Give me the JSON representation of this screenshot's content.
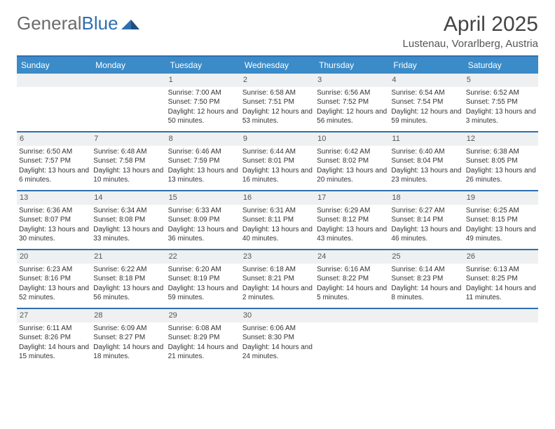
{
  "colors": {
    "header_rule": "#2f6fb0",
    "dow_bg": "#3b8bc8",
    "daynum_bg": "#eef0f1",
    "text": "#333333",
    "title": "#444444",
    "logo_gray": "#6b6b6b",
    "logo_blue": "#2f6fb0"
  },
  "logo": {
    "part1": "General",
    "part2": "Blue"
  },
  "title": "April 2025",
  "subtitle": "Lustenau, Vorarlberg, Austria",
  "dow": [
    "Sunday",
    "Monday",
    "Tuesday",
    "Wednesday",
    "Thursday",
    "Friday",
    "Saturday"
  ],
  "labels": {
    "sunrise": "Sunrise:",
    "sunset": "Sunset:",
    "daylight": "Daylight:"
  },
  "weeks": [
    [
      {
        "pad": true
      },
      {
        "pad": true
      },
      {
        "n": "1",
        "sunrise": "7:00 AM",
        "sunset": "7:50 PM",
        "day": "12 hours and 50 minutes."
      },
      {
        "n": "2",
        "sunrise": "6:58 AM",
        "sunset": "7:51 PM",
        "day": "12 hours and 53 minutes."
      },
      {
        "n": "3",
        "sunrise": "6:56 AM",
        "sunset": "7:52 PM",
        "day": "12 hours and 56 minutes."
      },
      {
        "n": "4",
        "sunrise": "6:54 AM",
        "sunset": "7:54 PM",
        "day": "12 hours and 59 minutes."
      },
      {
        "n": "5",
        "sunrise": "6:52 AM",
        "sunset": "7:55 PM",
        "day": "13 hours and 3 minutes."
      }
    ],
    [
      {
        "n": "6",
        "sunrise": "6:50 AM",
        "sunset": "7:57 PM",
        "day": "13 hours and 6 minutes."
      },
      {
        "n": "7",
        "sunrise": "6:48 AM",
        "sunset": "7:58 PM",
        "day": "13 hours and 10 minutes."
      },
      {
        "n": "8",
        "sunrise": "6:46 AM",
        "sunset": "7:59 PM",
        "day": "13 hours and 13 minutes."
      },
      {
        "n": "9",
        "sunrise": "6:44 AM",
        "sunset": "8:01 PM",
        "day": "13 hours and 16 minutes."
      },
      {
        "n": "10",
        "sunrise": "6:42 AM",
        "sunset": "8:02 PM",
        "day": "13 hours and 20 minutes."
      },
      {
        "n": "11",
        "sunrise": "6:40 AM",
        "sunset": "8:04 PM",
        "day": "13 hours and 23 minutes."
      },
      {
        "n": "12",
        "sunrise": "6:38 AM",
        "sunset": "8:05 PM",
        "day": "13 hours and 26 minutes."
      }
    ],
    [
      {
        "n": "13",
        "sunrise": "6:36 AM",
        "sunset": "8:07 PM",
        "day": "13 hours and 30 minutes."
      },
      {
        "n": "14",
        "sunrise": "6:34 AM",
        "sunset": "8:08 PM",
        "day": "13 hours and 33 minutes."
      },
      {
        "n": "15",
        "sunrise": "6:33 AM",
        "sunset": "8:09 PM",
        "day": "13 hours and 36 minutes."
      },
      {
        "n": "16",
        "sunrise": "6:31 AM",
        "sunset": "8:11 PM",
        "day": "13 hours and 40 minutes."
      },
      {
        "n": "17",
        "sunrise": "6:29 AM",
        "sunset": "8:12 PM",
        "day": "13 hours and 43 minutes."
      },
      {
        "n": "18",
        "sunrise": "6:27 AM",
        "sunset": "8:14 PM",
        "day": "13 hours and 46 minutes."
      },
      {
        "n": "19",
        "sunrise": "6:25 AM",
        "sunset": "8:15 PM",
        "day": "13 hours and 49 minutes."
      }
    ],
    [
      {
        "n": "20",
        "sunrise": "6:23 AM",
        "sunset": "8:16 PM",
        "day": "13 hours and 52 minutes."
      },
      {
        "n": "21",
        "sunrise": "6:22 AM",
        "sunset": "8:18 PM",
        "day": "13 hours and 56 minutes."
      },
      {
        "n": "22",
        "sunrise": "6:20 AM",
        "sunset": "8:19 PM",
        "day": "13 hours and 59 minutes."
      },
      {
        "n": "23",
        "sunrise": "6:18 AM",
        "sunset": "8:21 PM",
        "day": "14 hours and 2 minutes."
      },
      {
        "n": "24",
        "sunrise": "6:16 AM",
        "sunset": "8:22 PM",
        "day": "14 hours and 5 minutes."
      },
      {
        "n": "25",
        "sunrise": "6:14 AM",
        "sunset": "8:23 PM",
        "day": "14 hours and 8 minutes."
      },
      {
        "n": "26",
        "sunrise": "6:13 AM",
        "sunset": "8:25 PM",
        "day": "14 hours and 11 minutes."
      }
    ],
    [
      {
        "n": "27",
        "sunrise": "6:11 AM",
        "sunset": "8:26 PM",
        "day": "14 hours and 15 minutes."
      },
      {
        "n": "28",
        "sunrise": "6:09 AM",
        "sunset": "8:27 PM",
        "day": "14 hours and 18 minutes."
      },
      {
        "n": "29",
        "sunrise": "6:08 AM",
        "sunset": "8:29 PM",
        "day": "14 hours and 21 minutes."
      },
      {
        "n": "30",
        "sunrise": "6:06 AM",
        "sunset": "8:30 PM",
        "day": "14 hours and 24 minutes."
      },
      {
        "pad": true
      },
      {
        "pad": true
      },
      {
        "pad": true
      }
    ]
  ]
}
